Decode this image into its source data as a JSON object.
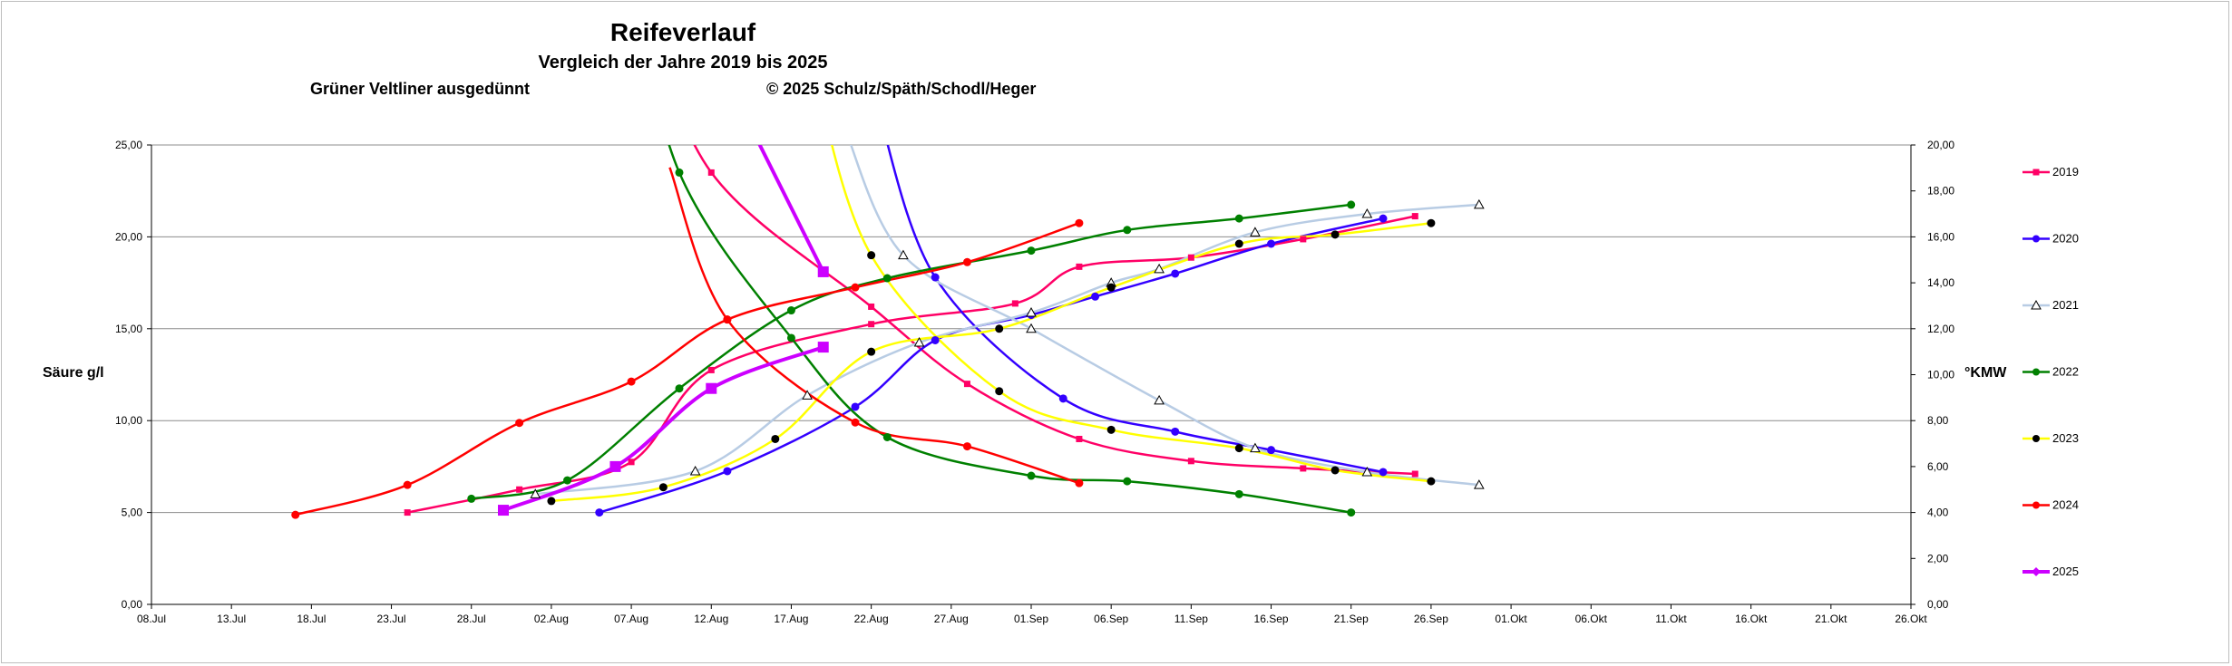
{
  "chart_data": {
    "type": "line",
    "title": "Reifeverlauf",
    "subtitle": "Vergleich der Jahre 2019 bis 2025",
    "annotations": [
      "Grüner Veltliner ausgedünnt",
      "© 2025  Schulz/Späth/Schodl/Heger"
    ],
    "ylabel": "Säure g/l",
    "y2label": "°KMW",
    "ylim": [
      0,
      25
    ],
    "y2lim": [
      0,
      20
    ],
    "xlim": [
      "2025-07-08",
      "2025-10-31"
    ],
    "x_ticks": [
      "08.Jul",
      "13.Jul",
      "18.Jul",
      "23.Jul",
      "28.Jul",
      "02.Aug",
      "07.Aug",
      "12.Aug",
      "17.Aug",
      "22.Aug",
      "27.Aug",
      "01.Sep",
      "06.Sep",
      "11.Sep",
      "16.Sep",
      "21.Sep",
      "26.Sep",
      "01.Okt",
      "06.Okt",
      "11.Okt",
      "16.Okt",
      "21.Okt",
      "26.Okt"
    ],
    "y_ticks": [
      "0,00",
      "5,00",
      "10,00",
      "15,00",
      "20,00",
      "25,00"
    ],
    "y2_ticks": [
      "0,00",
      "2,00",
      "4,00",
      "6,00",
      "8,00",
      "10,00",
      "12,00",
      "14,00",
      "16,00",
      "18,00",
      "20,00"
    ],
    "grid": "horizontal",
    "legend_position": "right",
    "series": [
      {
        "name": "2019",
        "color": "#ff0066",
        "marker": "square",
        "sugar": [
          [
            "2025-07-24",
            4.0
          ],
          [
            "2025-07-31",
            5.0
          ],
          [
            "2025-08-07",
            6.2
          ],
          [
            "2025-08-12",
            10.2
          ],
          [
            "2025-08-22",
            12.2
          ],
          [
            "2025-08-31",
            13.1
          ],
          [
            "2025-09-04",
            14.7
          ],
          [
            "2025-09-11",
            15.1
          ],
          [
            "2025-09-18",
            15.9
          ],
          [
            "2025-09-25",
            16.9
          ]
        ],
        "acid": [
          [
            "2025-08-12",
            23.5
          ],
          [
            "2025-08-22",
            16.2
          ],
          [
            "2025-08-28",
            12.0
          ],
          [
            "2025-09-04",
            9.0
          ],
          [
            "2025-09-11",
            7.8
          ],
          [
            "2025-09-18",
            7.4
          ],
          [
            "2025-09-25",
            7.1
          ]
        ]
      },
      {
        "name": "2020",
        "color": "#3300ff",
        "marker": "circle",
        "sugar": [
          [
            "2025-08-05",
            4.0
          ],
          [
            "2025-08-13",
            5.8
          ],
          [
            "2025-08-21",
            8.6
          ],
          [
            "2025-08-26",
            11.5
          ],
          [
            "2025-09-01",
            12.6
          ],
          [
            "2025-09-05",
            13.4
          ],
          [
            "2025-09-10",
            14.4
          ],
          [
            "2025-09-16",
            15.7
          ],
          [
            "2025-09-23",
            16.8
          ]
        ],
        "acid": [
          [
            "2025-08-26",
            17.8
          ],
          [
            "2025-09-03",
            11.2
          ],
          [
            "2025-09-10",
            9.4
          ],
          [
            "2025-09-16",
            8.4
          ],
          [
            "2025-09-23",
            7.2
          ]
        ]
      },
      {
        "name": "2021",
        "color": "#b8cce4",
        "marker": "triangle",
        "sugar": [
          [
            "2025-08-01",
            4.8
          ],
          [
            "2025-08-11",
            5.8
          ],
          [
            "2025-08-18",
            9.1
          ],
          [
            "2025-08-25",
            11.4
          ],
          [
            "2025-09-01",
            12.7
          ],
          [
            "2025-09-06",
            14.0
          ],
          [
            "2025-09-09",
            14.6
          ],
          [
            "2025-09-15",
            16.2
          ],
          [
            "2025-09-22",
            17.0
          ],
          [
            "2025-09-29",
            17.4
          ]
        ],
        "acid": [
          [
            "2025-08-24",
            19.0
          ],
          [
            "2025-09-01",
            15.0
          ],
          [
            "2025-09-09",
            11.1
          ],
          [
            "2025-09-15",
            8.5
          ],
          [
            "2025-09-22",
            7.2
          ],
          [
            "2025-09-29",
            6.5
          ]
        ]
      },
      {
        "name": "2022",
        "color": "#008000",
        "marker": "circle",
        "sugar": [
          [
            "2025-07-28",
            4.6
          ],
          [
            "2025-08-03",
            5.4
          ],
          [
            "2025-08-10",
            9.4
          ],
          [
            "2025-08-17",
            12.8
          ],
          [
            "2025-08-23",
            14.2
          ],
          [
            "2025-09-01",
            15.4
          ],
          [
            "2025-09-07",
            16.3
          ],
          [
            "2025-09-14",
            16.8
          ],
          [
            "2025-09-21",
            17.4
          ]
        ],
        "acid": [
          [
            "2025-08-10",
            23.5
          ],
          [
            "2025-08-17",
            14.5
          ],
          [
            "2025-08-23",
            9.1
          ],
          [
            "2025-09-01",
            7.0
          ],
          [
            "2025-09-07",
            6.7
          ],
          [
            "2025-09-14",
            6.0
          ],
          [
            "2025-09-21",
            5.0
          ]
        ]
      },
      {
        "name": "2023",
        "color": "#ffff00",
        "marker": "circle",
        "sugar": [
          [
            "2025-08-02",
            4.5
          ],
          [
            "2025-08-09",
            5.1
          ],
          [
            "2025-08-16",
            7.2
          ],
          [
            "2025-08-22",
            11.0
          ],
          [
            "2025-08-30",
            12.0
          ],
          [
            "2025-09-06",
            13.8
          ],
          [
            "2025-09-14",
            15.7
          ],
          [
            "2025-09-20",
            16.1
          ],
          [
            "2025-09-26",
            16.6
          ]
        ],
        "acid": [
          [
            "2025-08-22",
            19.0
          ],
          [
            "2025-08-30",
            11.6
          ],
          [
            "2025-09-06",
            9.5
          ],
          [
            "2025-09-14",
            8.5
          ],
          [
            "2025-09-20",
            7.3
          ],
          [
            "2025-09-26",
            6.7
          ]
        ]
      },
      {
        "name": "2024",
        "color": "#ff0000",
        "marker": "circle",
        "sugar": [
          [
            "2025-07-17",
            3.9
          ],
          [
            "2025-07-24",
            5.2
          ],
          [
            "2025-07-31",
            7.9
          ],
          [
            "2025-08-07",
            9.7
          ],
          [
            "2025-08-13",
            12.4
          ],
          [
            "2025-08-21",
            13.8
          ],
          [
            "2025-08-28",
            14.9
          ],
          [
            "2025-09-04",
            16.6
          ]
        ],
        "acid": [
          [
            "2025-08-13",
            15.5
          ],
          [
            "2025-08-21",
            9.9
          ],
          [
            "2025-08-28",
            8.6
          ],
          [
            "2025-09-04",
            6.6
          ]
        ]
      },
      {
        "name": "2025",
        "color": "#cc00ff",
        "marker": "diamond",
        "sugar": [
          [
            "2025-07-30",
            4.1
          ],
          [
            "2025-08-06",
            6.0
          ],
          [
            "2025-08-12",
            9.4
          ],
          [
            "2025-08-19",
            11.2
          ]
        ],
        "acid": [
          [
            "2025-08-19",
            18.1
          ]
        ]
      }
    ]
  }
}
